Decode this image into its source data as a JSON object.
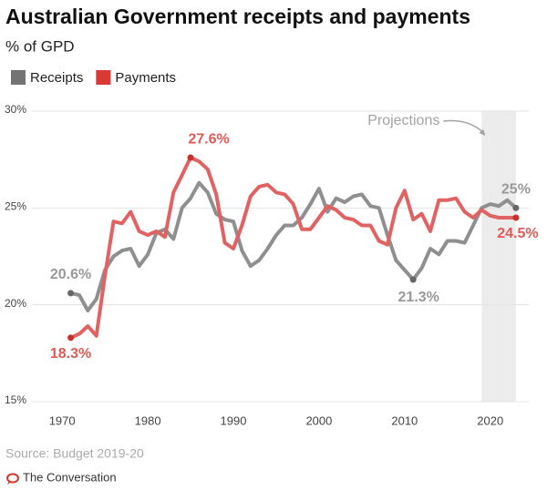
{
  "chart_data": {
    "type": "line",
    "title": "Australian Government receipts and payments",
    "subtitle": "% of GPD",
    "x": [
      1971,
      1972,
      1973,
      1974,
      1975,
      1976,
      1977,
      1978,
      1979,
      1980,
      1981,
      1982,
      1983,
      1984,
      1985,
      1986,
      1987,
      1988,
      1989,
      1990,
      1991,
      1992,
      1993,
      1994,
      1995,
      1996,
      1997,
      1998,
      1999,
      2000,
      2001,
      2002,
      2003,
      2004,
      2005,
      2006,
      2007,
      2008,
      2009,
      2010,
      2011,
      2012,
      2013,
      2014,
      2015,
      2016,
      2017,
      2018,
      2019,
      2020,
      2021,
      2022,
      2023
    ],
    "series": [
      {
        "name": "Receipts",
        "color": "#8f8f8f",
        "legend_color": "#737373",
        "values": [
          20.6,
          20.5,
          19.7,
          20.3,
          21.8,
          22.5,
          22.8,
          22.9,
          22.0,
          22.6,
          23.7,
          23.9,
          23.4,
          25.0,
          25.5,
          26.3,
          25.8,
          24.7,
          24.4,
          24.3,
          22.8,
          22.0,
          22.3,
          22.9,
          23.6,
          24.1,
          24.1,
          24.5,
          25.2,
          26.0,
          24.8,
          25.5,
          25.3,
          25.6,
          25.7,
          25.1,
          25.0,
          23.6,
          22.3,
          21.8,
          21.3,
          21.9,
          22.9,
          22.6,
          23.3,
          23.3,
          23.2,
          24.1,
          25.0,
          25.2,
          25.1,
          25.4,
          25.0
        ]
      },
      {
        "name": "Payments",
        "color": "#e06262",
        "legend_color": "#d93a33",
        "values": [
          18.3,
          18.5,
          18.9,
          18.4,
          21.5,
          24.3,
          24.2,
          24.8,
          23.8,
          23.6,
          23.8,
          23.5,
          25.8,
          26.7,
          27.6,
          27.4,
          27.0,
          25.7,
          23.2,
          22.9,
          24.1,
          25.6,
          26.1,
          26.2,
          25.8,
          25.7,
          25.2,
          23.9,
          23.9,
          24.5,
          25.1,
          24.9,
          24.5,
          24.4,
          24.1,
          24.1,
          23.3,
          23.1,
          25.0,
          25.9,
          24.4,
          24.7,
          23.8,
          25.4,
          25.4,
          25.5,
          24.8,
          24.5,
          24.9,
          24.6,
          24.5,
          24.5,
          24.5
        ]
      }
    ],
    "xlim": [
      1967,
      2024.5
    ],
    "xticks": [
      1970,
      1980,
      1990,
      2000,
      2010,
      2020
    ],
    "ylim": [
      15,
      30
    ],
    "yticks": [
      {
        "value": 15,
        "label": "15%"
      },
      {
        "value": 20,
        "label": "20%"
      },
      {
        "value": 25,
        "label": "25%"
      },
      {
        "value": 30,
        "label": "30%"
      }
    ],
    "grid": true,
    "legend": "top-left",
    "projection": {
      "label": "Projections",
      "start": 2019,
      "end": 2023
    },
    "annotations": [
      {
        "label": "20.6%",
        "series": 0,
        "x": 1971,
        "y": 20.6
      },
      {
        "label": "21.3%",
        "series": 0,
        "x": 2011,
        "y": 21.3
      },
      {
        "label": "25%",
        "series": 0,
        "x": 2023,
        "y": 25.0
      },
      {
        "label": "27.6%",
        "series": 1,
        "x": 1985,
        "y": 27.6
      },
      {
        "label": "18.3%",
        "series": 1,
        "x": 1971,
        "y": 18.3
      },
      {
        "label": "24.5%",
        "series": 1,
        "x": 2023,
        "y": 24.5
      }
    ],
    "source": "Source: Budget 2019-20",
    "brand": "The Conversation"
  }
}
